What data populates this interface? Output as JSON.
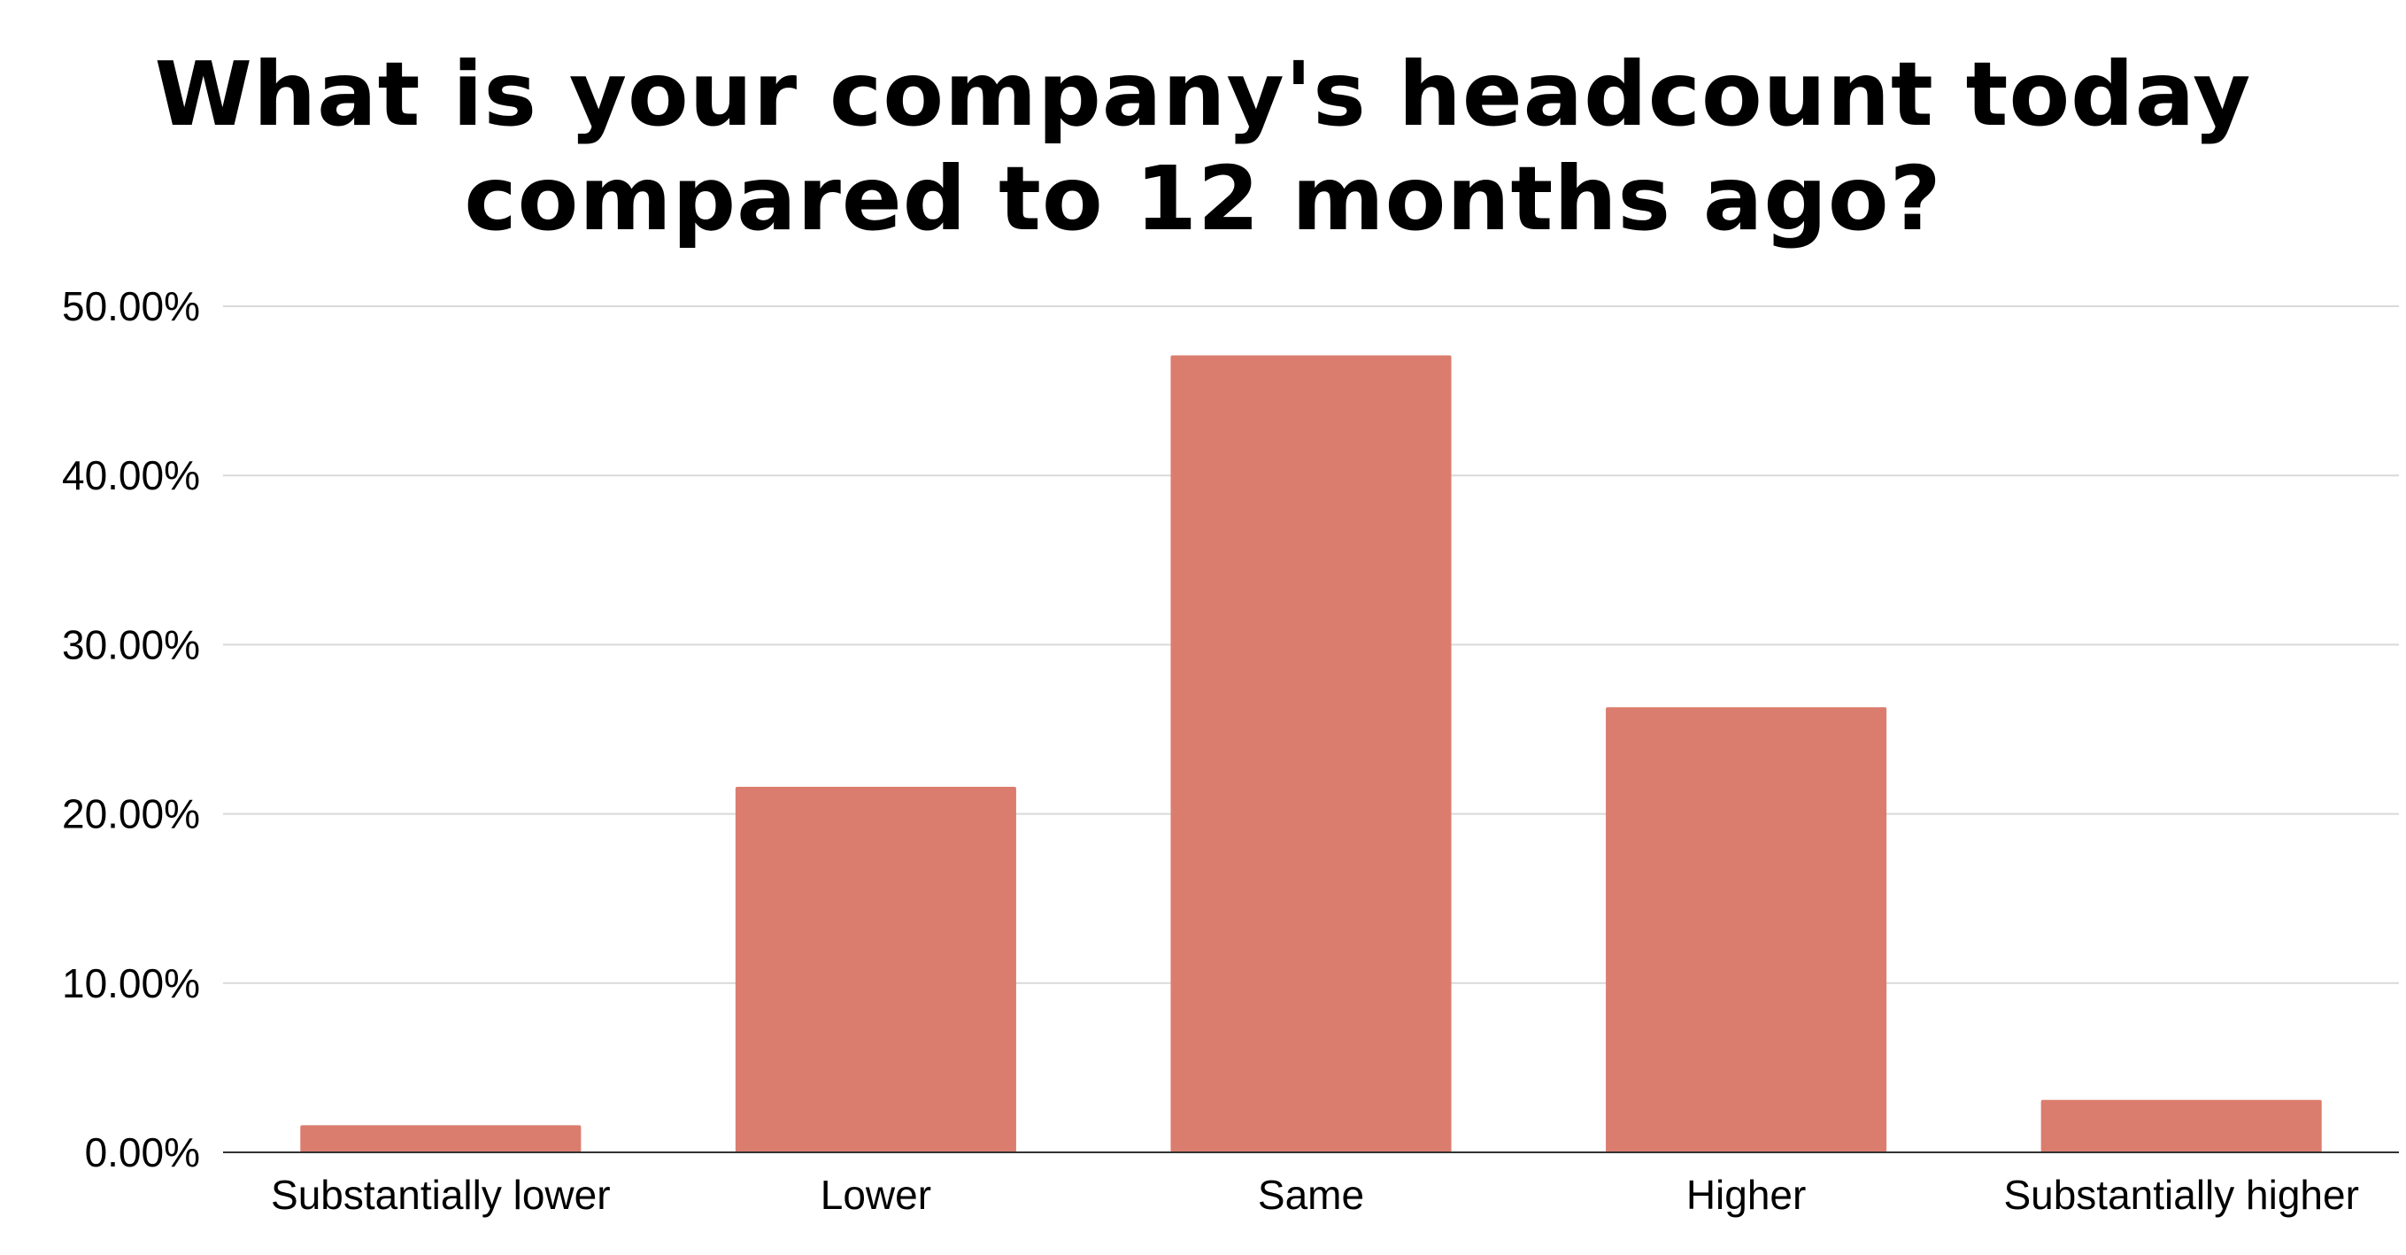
{
  "chart_data": {
    "type": "bar",
    "title": "What is your company's headcount today\ncompared to 12 months ago?",
    "xlabel": "",
    "ylabel": "",
    "categories": [
      "Substantially lower",
      "Lower",
      "Same",
      "Higher",
      "Substantially higher"
    ],
    "values": [
      1.6,
      21.6,
      47.1,
      26.3,
      3.1
    ],
    "ylim": [
      0,
      50
    ],
    "yticks": [
      0,
      10,
      20,
      30,
      40,
      50
    ],
    "ytick_labels": [
      "0.00%",
      "10.00%",
      "20.00%",
      "30.00%",
      "40.00%",
      "50.00%"
    ],
    "grid": true,
    "legend": "none",
    "bar_color": "#db7d6e",
    "grid_color": "#d9d9d9",
    "axis_color": "#333333"
  }
}
